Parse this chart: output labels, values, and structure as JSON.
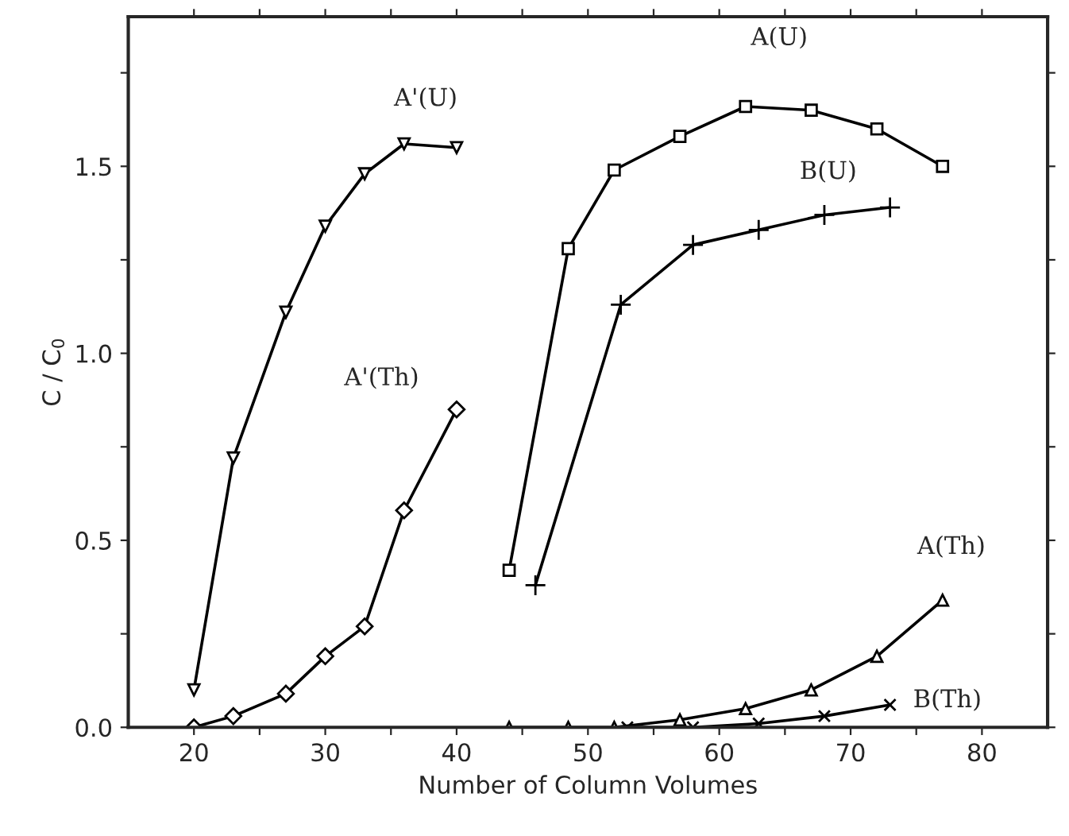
{
  "chart_data": {
    "type": "line",
    "xlabel": "Number of Column Volumes",
    "ylabel": "C / C$_{0}$",
    "xlim": [
      15,
      85
    ],
    "ylim": [
      0,
      1.9
    ],
    "xticks": [
      20,
      {
        "value": 25,
        "label": null
      },
      30,
      {
        "value": 35,
        "label": null
      },
      40,
      {
        "value": 45,
        "label": null
      },
      50,
      {
        "value": 55,
        "label": null
      },
      60,
      {
        "value": 65,
        "label": null
      },
      70,
      {
        "value": 75,
        "label": null
      },
      80
    ],
    "yticks": [
      {
        "value": 0,
        "label": "0.0"
      },
      {
        "value": 0.25,
        "label": null
      },
      {
        "value": 0.5,
        "label": "0.5"
      },
      {
        "value": 0.75,
        "label": null
      },
      {
        "value": 1.0,
        "label": "1.0"
      },
      {
        "value": 1.25,
        "label": null
      },
      {
        "value": 1.5,
        "label": "1.5"
      },
      {
        "value": 1.75,
        "label": null
      }
    ],
    "grid": false,
    "legend": false,
    "line_style": "solid",
    "series": [
      {
        "name": "A'(U)",
        "color": "#000000",
        "marker": "triangle_down",
        "x": [
          20,
          23,
          27,
          30,
          33,
          36,
          40
        ],
        "values": [
          0.1,
          0.72,
          1.11,
          1.34,
          1.48,
          1.56,
          1.55
        ]
      },
      {
        "name": "A'(Th)",
        "color": "#000000",
        "marker": "diamond",
        "x": [
          20,
          23,
          27,
          30,
          33,
          36,
          40
        ],
        "values": [
          0.0,
          0.03,
          0.09,
          0.19,
          0.27,
          0.58,
          0.85
        ]
      },
      {
        "name": "A(U)",
        "color": "#000000",
        "marker": "square",
        "x": [
          44,
          48.5,
          52,
          57,
          62,
          67,
          72,
          77
        ],
        "values": [
          0.42,
          1.28,
          1.49,
          1.58,
          1.66,
          1.65,
          1.6,
          1.5
        ]
      },
      {
        "name": "B(U)",
        "color": "#000000",
        "marker": "plus",
        "x": [
          46,
          52.5,
          58,
          63,
          68,
          73
        ],
        "values": [
          0.38,
          1.13,
          1.29,
          1.33,
          1.37,
          1.39
        ]
      },
      {
        "name": "A(Th)",
        "color": "#000000",
        "marker": "triangle",
        "x": [
          44,
          48.5,
          52,
          57,
          62,
          67,
          72,
          77
        ],
        "values": [
          0.0,
          0.0,
          0.0,
          0.02,
          0.05,
          0.1,
          0.19,
          0.34
        ]
      },
      {
        "name": "B(Th)",
        "color": "#000000",
        "marker": "cross",
        "x": [
          53,
          58,
          63,
          68,
          73
        ],
        "values": [
          0.0,
          0.0,
          0.01,
          0.03,
          0.06
        ]
      }
    ]
  }
}
